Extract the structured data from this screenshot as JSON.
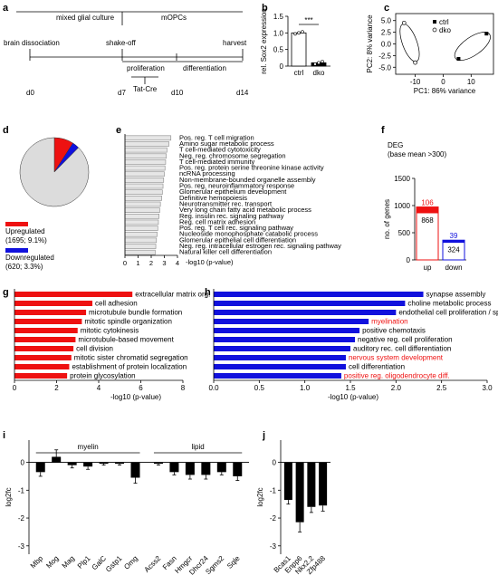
{
  "panel_letters": [
    "a",
    "b",
    "c",
    "d",
    "e",
    "f",
    "g",
    "h",
    "i",
    "j"
  ],
  "timeline": {
    "phase_mixed": "mixed glial culture",
    "phase_mopc": "mOPCs",
    "events": [
      "brain dissociation",
      "shake-off",
      "harvest"
    ],
    "sub_phases": [
      "proliferation",
      "differentiation"
    ],
    "treatment": "Tat-Cre",
    "days": [
      "d0",
      "d7",
      "d10",
      "d14"
    ]
  },
  "chart_data": [
    {
      "id": "b",
      "type": "bar",
      "ylabel": "rel. Sox2 expression",
      "categories": [
        "ctrl",
        "dko"
      ],
      "values": [
        1.0,
        0.1
      ],
      "errors": [
        0.03,
        0.04
      ],
      "points": [
        [
          0.97,
          1.0,
          1.03
        ],
        [
          0.06,
          0.1,
          0.14
        ]
      ],
      "ylim": [
        0,
        1.5
      ],
      "yticks": [
        "0",
        "0.5",
        "1.0",
        "1.5"
      ],
      "significance": "***"
    },
    {
      "id": "c",
      "type": "scatter",
      "xlabel": "PC1: 86% variance",
      "ylabel": "PC2: 8% variance",
      "xlim": [
        -17,
        18
      ],
      "ylim": [
        -6.5,
        6.5
      ],
      "xticks": [
        -10,
        0,
        10
      ],
      "yticks": [
        -5.0,
        -2.5,
        0.0,
        2.5,
        5.0
      ],
      "xtick_labels": [
        "-10",
        "0",
        "10"
      ],
      "ytick_labels": [
        "-5.0",
        "-2.5",
        "0.0",
        "2.5",
        "5.0"
      ],
      "series": [
        {
          "name": "ctrl",
          "points": [
            [
              5.5,
              -3.2
            ],
            [
              15.5,
              2.2
            ]
          ]
        },
        {
          "name": "dko",
          "points": [
            [
              -14,
              4.5
            ],
            [
              -10,
              -4
            ]
          ]
        }
      ]
    },
    {
      "id": "d",
      "type": "pie",
      "slices": [
        {
          "name": "Upregulated",
          "percent": 9.1,
          "color": "#ee1111"
        },
        {
          "name": "Downregulated",
          "percent": 3.3,
          "color": "#1111dd"
        },
        {
          "name": "",
          "percent": 87.6,
          "color": "#dcdcdc"
        }
      ],
      "legend": [
        {
          "label": "Upregulated",
          "detail": "(1695; 9.1%)",
          "color": "#ee1111"
        },
        {
          "label": "Downregulated",
          "detail": "(620; 3.3%)",
          "color": "#1111dd"
        }
      ]
    },
    {
      "id": "e",
      "type": "bar",
      "orientation": "horizontal",
      "xlabel": "-log10 (p-value)",
      "xlim": [
        0,
        4
      ],
      "xticks": [
        "0",
        "1",
        "2",
        "3",
        "4"
      ],
      "color": "#e6e6e6",
      "categories": [
        "Pos. reg. T cell migration",
        "Amino sugar metabolic process",
        "T cell-mediated cytotoxicity",
        "Neg. reg. chromosome segregation",
        "T cell-mediated immunity",
        "Pos. reg. protein serine threonine kinase activity",
        "ncRNA processing",
        "Non-membrane-bounded organelle assembly",
        "Pos. reg. neuroinflammatory response",
        "Glomerular epithelium development",
        "Definitive hemopoiesis",
        "Neurotransmitter rec. transport",
        "Very long chain fatty acid metabolic process",
        "Reg. insulin rec. signaling pathway",
        "Reg. cell matrix adhesion",
        "Pos. reg. T cell rec. signaling pathway",
        "Nucleoside monophosphate catabolic process",
        "Glomerular epithelial cell differentiation",
        "Neg. reg. intracellular estrogen rec. signaling pathway",
        "Natural killer cell differentiation"
      ],
      "values": [
        3.5,
        3.35,
        3.2,
        3.15,
        3.1,
        3.05,
        3.0,
        2.95,
        2.9,
        2.85,
        2.8,
        2.7,
        2.65,
        2.6,
        2.55,
        2.5,
        2.45,
        2.4,
        2.35,
        2.3
      ]
    },
    {
      "id": "f",
      "type": "bar",
      "stacked": true,
      "title": "DEG",
      "subtitle": "(base mean >300)",
      "ylabel": "no. of genes",
      "categories": [
        "up",
        "down"
      ],
      "ylim": [
        0,
        1500
      ],
      "yticks": [
        "0",
        "500",
        "1000",
        "1500"
      ],
      "series": [
        {
          "values": [
            868,
            324
          ],
          "labels": [
            "868",
            "324"
          ],
          "colors": [
            "#ffffff",
            "#ffffff"
          ],
          "borders": [
            "#ee1111",
            "#1111dd"
          ]
        },
        {
          "values": [
            106,
            39
          ],
          "labels": [
            "106",
            "39"
          ],
          "colors": [
            "#ee1111",
            "#1111dd"
          ]
        }
      ]
    },
    {
      "id": "g",
      "type": "bar",
      "orientation": "horizontal",
      "xlabel": "-log10 (p-value)",
      "xlim": [
        0,
        8
      ],
      "xticks": [
        "0",
        "2",
        "4",
        "6",
        "8"
      ],
      "color": "#ee1111",
      "categories": [
        "extracellular matrix org.",
        "cell adhesion",
        "microtubule bundle formation",
        "mitotic spindle organization",
        "mitotic cytokinesis",
        "microtubule-based movement",
        "cell division",
        "mitotic sister chromatid segregation",
        "establishment of protein localization",
        "protein glycosylation"
      ],
      "values": [
        5.6,
        3.7,
        3.4,
        3.2,
        3.0,
        2.9,
        2.8,
        2.7,
        2.6,
        2.5
      ]
    },
    {
      "id": "h",
      "type": "bar",
      "orientation": "horizontal",
      "xlabel": "-log10 (p-value)",
      "xlim": [
        0,
        3.0
      ],
      "xticks": [
        "0.0",
        "0.5",
        "1.0",
        "1.5",
        "2.0",
        "2.5",
        "3.0"
      ],
      "color": "#1111dd",
      "categories": [
        "synapse assembly",
        "choline metabolic process",
        "endothelial cell proliferation / sprouting angiogenesis",
        "myelination",
        "positive chemotaxis",
        "negative reg. cell proliferation",
        "auditory rec. cell differentiation",
        "nervous system development",
        "cell differentiation",
        "positive reg. oligodendrocyte diff."
      ],
      "highlighted": [
        "myelination",
        "nervous system development",
        "positive reg. oligodendrocyte diff."
      ],
      "highlight_color": "#ee1111",
      "values": [
        2.3,
        2.1,
        2.0,
        1.7,
        1.6,
        1.55,
        1.5,
        1.45,
        1.45,
        1.4
      ]
    },
    {
      "id": "i",
      "type": "bar",
      "ylabel": "log2fc",
      "ylim": [
        -3.3,
        0.8
      ],
      "yticks": [
        "0",
        "-1",
        "-2",
        "-3"
      ],
      "groups": [
        {
          "label": "myelin",
          "categories": [
            "Mbp",
            "Mog",
            "Mag",
            "Plp1",
            "GalC",
            "Gstp1",
            "Omg"
          ]
        },
        {
          "label": "lipid",
          "categories": [
            "Acss2",
            "Fasn",
            "Hmgcr",
            "Dhcr24",
            "Sgms2",
            "Sqle"
          ]
        }
      ],
      "categories": [
        "Mbp",
        "Mog",
        "Mag",
        "Plp1",
        "GalC",
        "Gstp1",
        "Omg",
        "Acss2",
        "Fasn",
        "Hmgcr",
        "Dhcr24",
        "Sgms2",
        "Sqle"
      ],
      "values": [
        -0.35,
        0.2,
        -0.1,
        -0.15,
        -0.05,
        -0.05,
        -0.55,
        -0.05,
        -0.35,
        -0.45,
        -0.45,
        -0.35,
        -0.5
      ],
      "errors": [
        0.15,
        0.25,
        0.1,
        0.1,
        0.05,
        0.05,
        0.2,
        0.05,
        0.1,
        0.15,
        0.15,
        0.1,
        0.15
      ]
    },
    {
      "id": "j",
      "type": "bar",
      "ylabel": "log2fc",
      "ylim": [
        -3.3,
        0.8
      ],
      "yticks": [
        "0",
        "-1",
        "-2",
        "-3"
      ],
      "categories": [
        "Bcas1",
        "Enpp6",
        "Nkx2.2",
        "Zfp488"
      ],
      "values": [
        -1.35,
        -2.15,
        -1.6,
        -1.55
      ],
      "errors": [
        0.15,
        0.35,
        0.2,
        0.2
      ]
    }
  ]
}
